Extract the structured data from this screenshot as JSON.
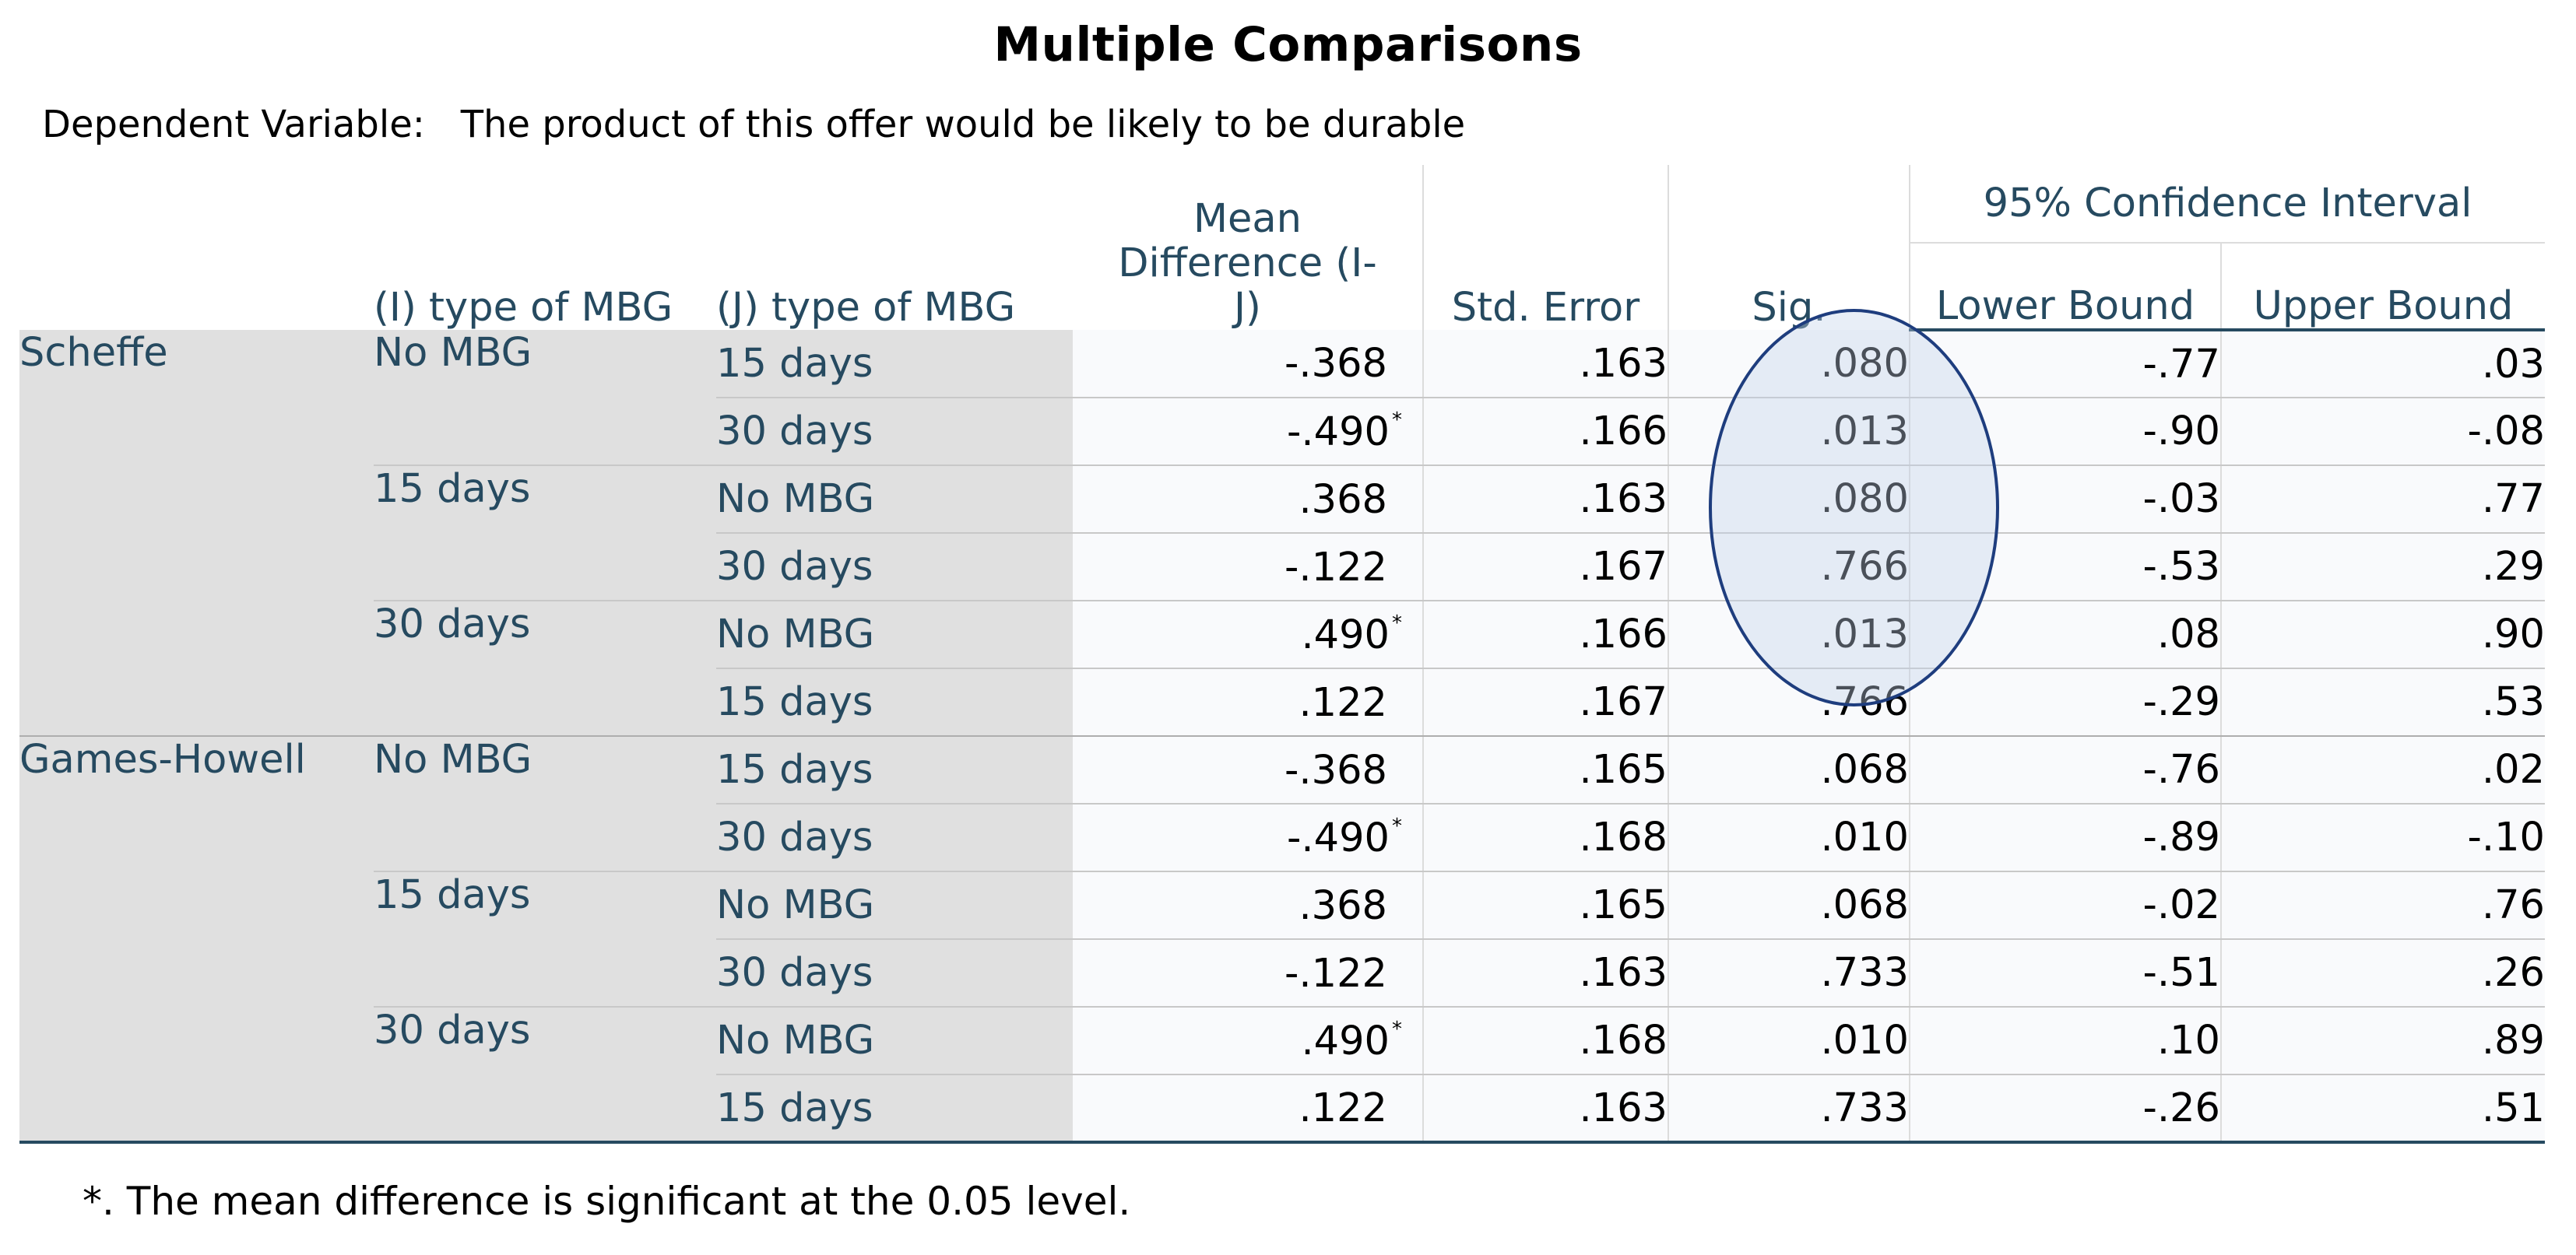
{
  "title": "Multiple Comparisons",
  "dependent_variable": {
    "label": "Dependent Variable:",
    "value": "The product of this offer would be likely to be durable"
  },
  "headers": {
    "i_type": "(I) type of MBG",
    "j_type": "(J) type of MBG",
    "mean_diff": "Mean Difference (I-J)",
    "std_error": "Std. Error",
    "sig": "Sig.",
    "ci": "95% Confidence Interval",
    "lower": "Lower Bound",
    "upper": "Upper Bound"
  },
  "groups": [
    {
      "method": "Scheffe",
      "subgroups": [
        {
          "i": "No MBG",
          "rows": [
            {
              "j": "15 days",
              "mean": "-.368",
              "star": "",
              "se": ".163",
              "sig": ".080",
              "lower": "-.77",
              "upper": ".03"
            },
            {
              "j": "30 days",
              "mean": "-.490",
              "star": "*",
              "se": ".166",
              "sig": ".013",
              "lower": "-.90",
              "upper": "-.08"
            }
          ]
        },
        {
          "i": "15 days",
          "rows": [
            {
              "j": "No MBG",
              "mean": ".368",
              "star": "",
              "se": ".163",
              "sig": ".080",
              "lower": "-.03",
              "upper": ".77"
            },
            {
              "j": "30 days",
              "mean": "-.122",
              "star": "",
              "se": ".167",
              "sig": ".766",
              "lower": "-.53",
              "upper": ".29"
            }
          ]
        },
        {
          "i": "30 days",
          "rows": [
            {
              "j": "No MBG",
              "mean": ".490",
              "star": "*",
              "se": ".166",
              "sig": ".013",
              "lower": ".08",
              "upper": ".90"
            },
            {
              "j": "15 days",
              "mean": ".122",
              "star": "",
              "se": ".167",
              "sig": ".766",
              "lower": "-.29",
              "upper": ".53"
            }
          ]
        }
      ]
    },
    {
      "method": "Games-Howell",
      "subgroups": [
        {
          "i": "No MBG",
          "rows": [
            {
              "j": "15 days",
              "mean": "-.368",
              "star": "",
              "se": ".165",
              "sig": ".068",
              "lower": "-.76",
              "upper": ".02"
            },
            {
              "j": "30 days",
              "mean": "-.490",
              "star": "*",
              "se": ".168",
              "sig": ".010",
              "lower": "-.89",
              "upper": "-.10"
            }
          ]
        },
        {
          "i": "15 days",
          "rows": [
            {
              "j": "No MBG",
              "mean": ".368",
              "star": "",
              "se": ".165",
              "sig": ".068",
              "lower": "-.02",
              "upper": ".76"
            },
            {
              "j": "30 days",
              "mean": "-.122",
              "star": "",
              "se": ".163",
              "sig": ".733",
              "lower": "-.51",
              "upper": ".26"
            }
          ]
        },
        {
          "i": "30 days",
          "rows": [
            {
              "j": "No MBG",
              "mean": ".490",
              "star": "*",
              "se": ".168",
              "sig": ".010",
              "lower": ".10",
              "upper": ".89"
            },
            {
              "j": "15 days",
              "mean": ".122",
              "star": "",
              "se": ".163",
              "sig": ".733",
              "lower": "-.26",
              "upper": ".51"
            }
          ]
        }
      ]
    }
  ],
  "footnote": "*. The mean difference is significant at the 0.05 level.",
  "colors": {
    "header_text": "#264a60",
    "label_bg": "#e0e0e0",
    "data_bg": "#f9fafc",
    "highlight": "#1e3d7e"
  }
}
